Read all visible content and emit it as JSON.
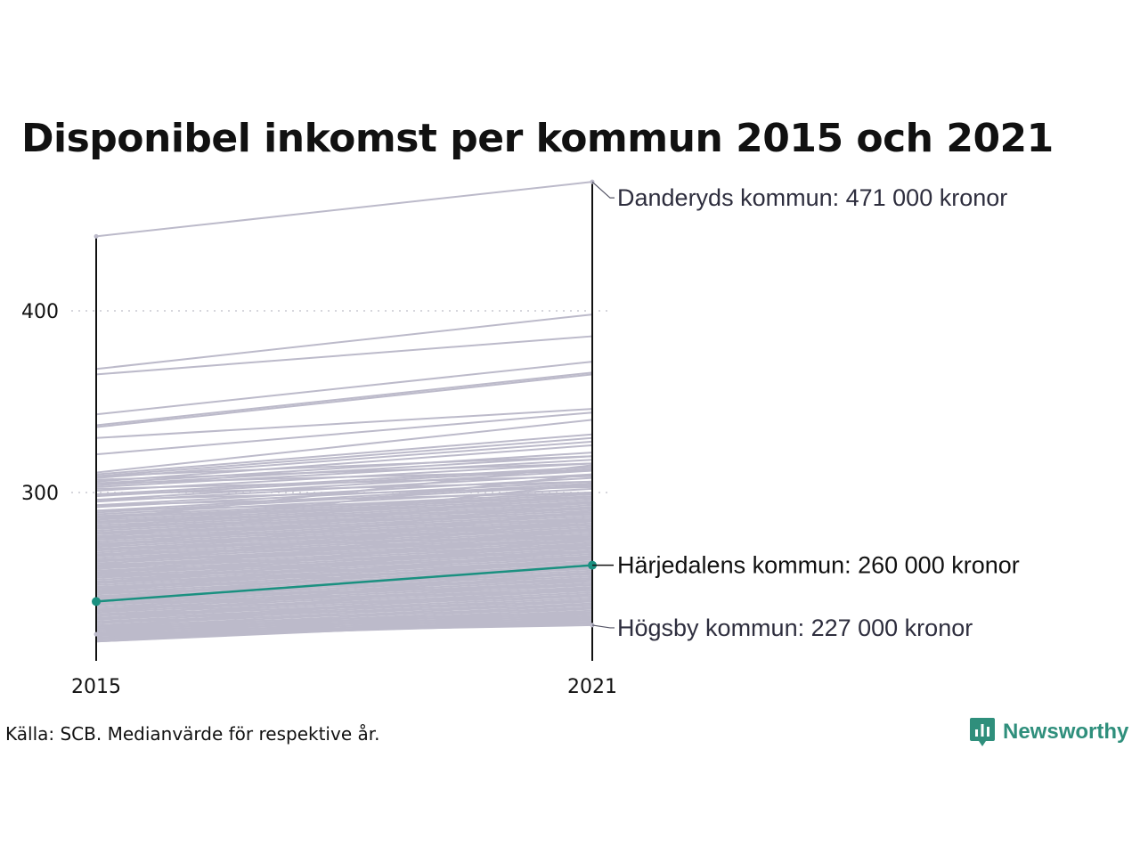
{
  "chart_data": {
    "type": "line",
    "title": "Disponibel inkomst per kommun 2015 och 2021",
    "xlabel": "",
    "ylabel": "",
    "categories": [
      "2015",
      "2021"
    ],
    "yticks": [
      "300",
      "400"
    ],
    "ylim": [
      210,
      480
    ],
    "grid": "horizontal dotted",
    "highlight": {
      "name": "Härjedalens kommun",
      "values": [
        240,
        260
      ],
      "label": "Härjedalens kommun: 260 000 kronor",
      "color": "#1a9080"
    },
    "annotated": [
      {
        "name": "Danderyds kommun",
        "values": [
          441,
          471
        ],
        "label": "Danderyds kommun: 471 000 kronor"
      },
      {
        "name": "Högsby kommun",
        "values": [
          222,
          227
        ],
        "label": "Högsby kommun: 227 000 kronor"
      }
    ],
    "background_series": [
      [
        368,
        398
      ],
      [
        365,
        386
      ],
      [
        343,
        372
      ],
      [
        337,
        366
      ],
      [
        336,
        365
      ],
      [
        330,
        346
      ],
      [
        321,
        344
      ],
      [
        311,
        340
      ],
      [
        310,
        332
      ],
      [
        309,
        330
      ],
      [
        308,
        328
      ],
      [
        306,
        326
      ],
      [
        305,
        322
      ],
      [
        304,
        320
      ],
      [
        303,
        318
      ],
      [
        301,
        316
      ],
      [
        299,
        314
      ],
      [
        298,
        313
      ],
      [
        296,
        312
      ],
      [
        295,
        310
      ],
      [
        293,
        308
      ],
      [
        292,
        306
      ],
      [
        290,
        305
      ],
      [
        289,
        304
      ],
      [
        288,
        302
      ],
      [
        287,
        300
      ],
      [
        286,
        299
      ],
      [
        285,
        298
      ],
      [
        284,
        297
      ],
      [
        283,
        296
      ],
      [
        282,
        295
      ],
      [
        281,
        294
      ],
      [
        280,
        293
      ],
      [
        279,
        292
      ],
      [
        278,
        291
      ],
      [
        277,
        290
      ],
      [
        276,
        289
      ],
      [
        275,
        288
      ],
      [
        274,
        287
      ],
      [
        273,
        286
      ],
      [
        272,
        285
      ],
      [
        271,
        284
      ],
      [
        270,
        283
      ],
      [
        269,
        282
      ],
      [
        268,
        281
      ],
      [
        267,
        280
      ],
      [
        266,
        279
      ],
      [
        265,
        278
      ],
      [
        264,
        277
      ],
      [
        263,
        276
      ],
      [
        262,
        275
      ],
      [
        261,
        274
      ],
      [
        260,
        273
      ],
      [
        259,
        272
      ],
      [
        258,
        271
      ],
      [
        257,
        270
      ],
      [
        256,
        269
      ],
      [
        255,
        268
      ],
      [
        254,
        267
      ],
      [
        253,
        266
      ],
      [
        252,
        265
      ],
      [
        251,
        264
      ],
      [
        250,
        263
      ],
      [
        249,
        262
      ],
      [
        248,
        261
      ],
      [
        247,
        260
      ],
      [
        246,
        259
      ],
      [
        245,
        258
      ],
      [
        244,
        257
      ],
      [
        243,
        256
      ],
      [
        242,
        255
      ],
      [
        241,
        254
      ],
      [
        240,
        253
      ],
      [
        239,
        252
      ],
      [
        238,
        251
      ],
      [
        237,
        250
      ],
      [
        236,
        249
      ],
      [
        235,
        248
      ],
      [
        234,
        247
      ],
      [
        233,
        246
      ],
      [
        232,
        245
      ],
      [
        231,
        244
      ],
      [
        230,
        243
      ],
      [
        229,
        242
      ],
      [
        228,
        241
      ],
      [
        227,
        240
      ],
      [
        226,
        239
      ],
      [
        225,
        238
      ],
      [
        224,
        237
      ],
      [
        223,
        236
      ],
      [
        222,
        235
      ],
      [
        221,
        234
      ],
      [
        220,
        233
      ],
      [
        219,
        232
      ],
      [
        218,
        231
      ],
      [
        218,
        230
      ],
      [
        219,
        229
      ],
      [
        220,
        228
      ],
      [
        221,
        228
      ],
      [
        222,
        229
      ],
      [
        223,
        230
      ],
      [
        224,
        231
      ],
      [
        225,
        232
      ],
      [
        226,
        233
      ],
      [
        227,
        234
      ],
      [
        229,
        236
      ],
      [
        231,
        238
      ],
      [
        233,
        240
      ],
      [
        236,
        243
      ],
      [
        239,
        246
      ],
      [
        242,
        249
      ],
      [
        245,
        252
      ],
      [
        248,
        255
      ],
      [
        251,
        258
      ],
      [
        254,
        261
      ],
      [
        257,
        264
      ],
      [
        260,
        267
      ],
      [
        263,
        270
      ],
      [
        266,
        273
      ],
      [
        269,
        276
      ],
      [
        272,
        279
      ],
      [
        275,
        282
      ],
      [
        278,
        285
      ],
      [
        281,
        288
      ],
      [
        284,
        291
      ],
      [
        287,
        294
      ],
      [
        290,
        297
      ],
      [
        293,
        300
      ],
      [
        296,
        303
      ],
      [
        299,
        306
      ],
      [
        302,
        309
      ],
      [
        305,
        312
      ],
      [
        307,
        316
      ],
      [
        309,
        320
      ],
      [
        285,
        315
      ],
      [
        280,
        310
      ],
      [
        275,
        305
      ],
      [
        270,
        300
      ],
      [
        265,
        295
      ],
      [
        260,
        290
      ],
      [
        255,
        285
      ],
      [
        250,
        280
      ],
      [
        245,
        275
      ],
      [
        240,
        270
      ],
      [
        235,
        265
      ],
      [
        230,
        260
      ],
      [
        262,
        285
      ],
      [
        258,
        280
      ],
      [
        254,
        276
      ],
      [
        250,
        272
      ],
      [
        246,
        268
      ],
      [
        242,
        264
      ],
      [
        238,
        260
      ],
      [
        234,
        256
      ],
      [
        230,
        252
      ],
      [
        226,
        248
      ]
    ]
  },
  "footer": {
    "source": "Källa: SCB. Medianvärde för respektive år.",
    "brand": "Newsworthy"
  },
  "colors": {
    "background_line": "#bcbaca",
    "highlight": "#1a9080",
    "axis": "#111111",
    "label_text": "#2e2e3e",
    "brand": "#2f8f7c"
  }
}
